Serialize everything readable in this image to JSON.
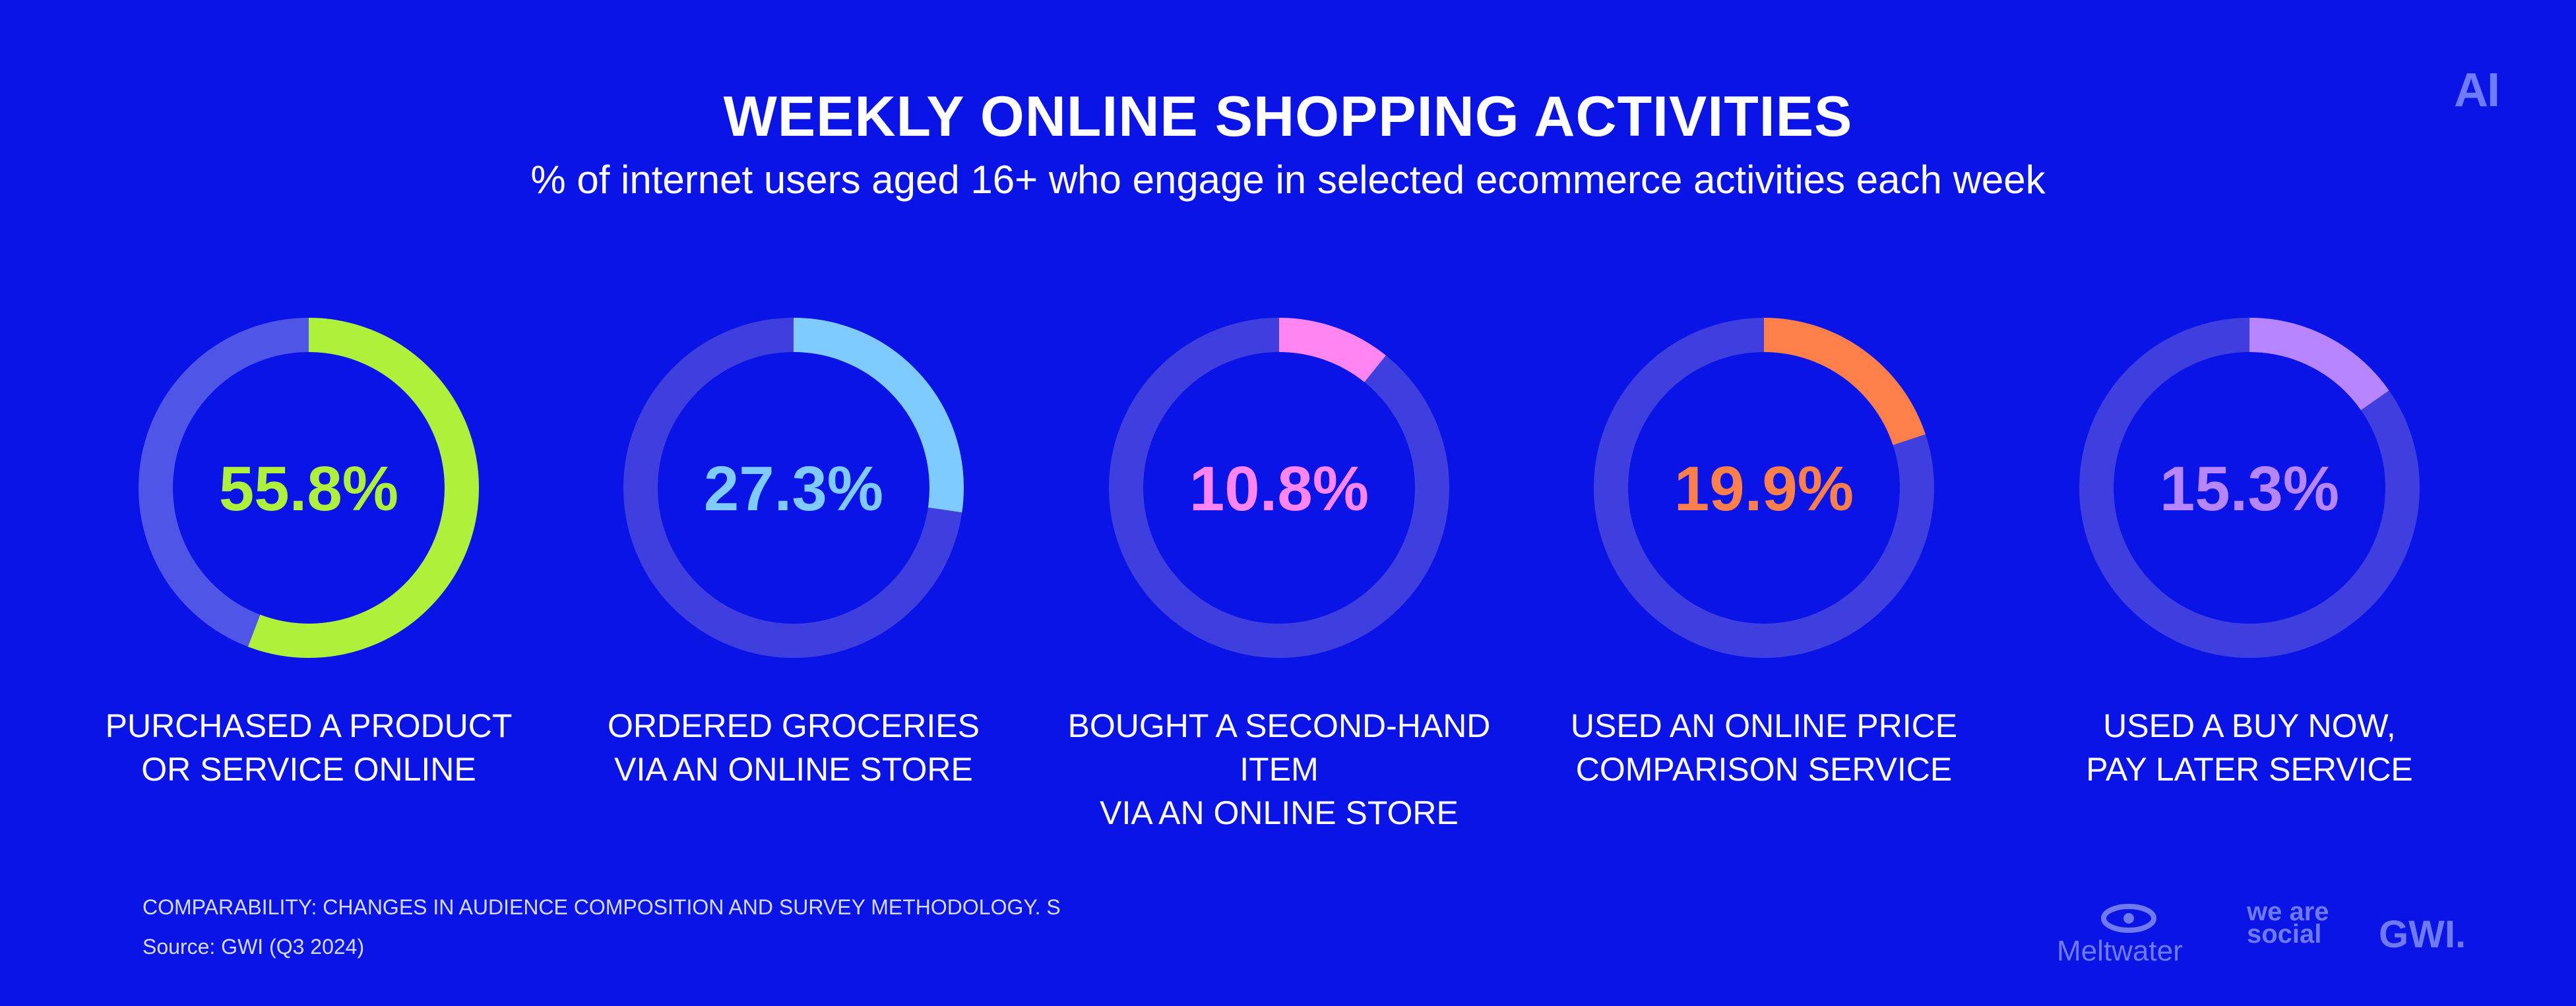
{
  "header": {
    "title": "WEEKLY ONLINE SHOPPING ACTIVITIES",
    "subtitle": "% of internet users aged 16+ who engage in selected ecommerce activities each week",
    "corner_logo": "AI"
  },
  "chart_data": {
    "type": "donut",
    "unit": "%",
    "categories": [
      "PURCHASED A PRODUCT OR SERVICE ONLINE",
      "ORDERED GROCERIES VIA AN ONLINE STORE",
      "BOUGHT A SECOND-HAND ITEM VIA AN ONLINE STORE",
      "USED AN ONLINE PRICE COMPARISON SERVICE",
      "USED A BUY NOW, PAY LATER SERVICE"
    ],
    "label_lines": [
      [
        "PURCHASED A PRODUCT",
        "OR SERVICE ONLINE"
      ],
      [
        "ORDERED GROCERIES",
        "VIA AN ONLINE STORE"
      ],
      [
        "BOUGHT A SECOND-HAND ITEM",
        "VIA AN ONLINE STORE"
      ],
      [
        "USED AN ONLINE PRICE",
        "COMPARISON SERVICE"
      ],
      [
        "USED A BUY NOW,",
        "PAY LATER SERVICE"
      ]
    ],
    "values": [
      55.8,
      27.3,
      10.8,
      19.9,
      15.3
    ],
    "value_labels": [
      "55.8%",
      "27.3%",
      "10.8%",
      "19.9%",
      "15.3%"
    ],
    "colors": [
      "#aef03a",
      "#7fcbff",
      "#ff86f2",
      "#ff7f4a",
      "#b685ff"
    ],
    "track_color": "#3f3fe0",
    "ylim": [
      0,
      100
    ]
  },
  "footer": {
    "comparability": "COMPARABILITY: CHANGES IN AUDIENCE COMPOSITION AND SURVEY METHODOLOGY. S",
    "source": "Source: GWI (Q3 2024)",
    "brands": [
      "Meltwater",
      "we are social",
      "GWI."
    ]
  }
}
